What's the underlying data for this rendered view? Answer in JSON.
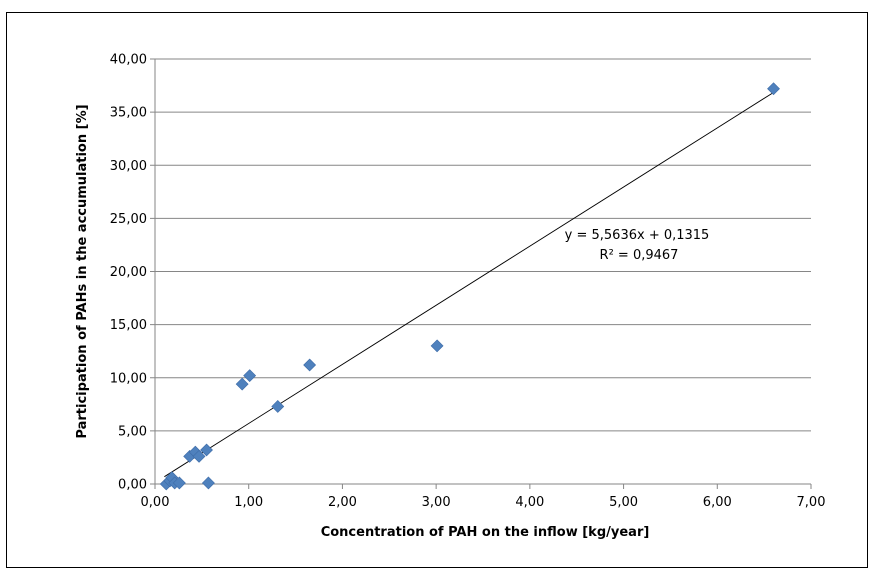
{
  "chart_data": {
    "type": "scatter",
    "title": "",
    "xlabel": "Concentration of PAH on the inflow [kg/year]",
    "ylabel": "Participation of PAHs in the accumulation [%]",
    "xlim": [
      0,
      7
    ],
    "ylim": [
      0,
      40
    ],
    "xticks": [
      "0,00",
      "1,00",
      "2,00",
      "3,00",
      "4,00",
      "5,00",
      "6,00",
      "7,00"
    ],
    "yticks": [
      "0,00",
      "5,00",
      "10,00",
      "15,00",
      "20,00",
      "25,00",
      "30,00",
      "35,00",
      "40,00"
    ],
    "xtick_values": [
      0,
      1,
      2,
      3,
      4,
      5,
      6,
      7
    ],
    "ytick_values": [
      0,
      5,
      10,
      15,
      20,
      25,
      30,
      35,
      40
    ],
    "grid": "horizontal",
    "legend": "none",
    "marker_color": "#4F81BD",
    "series": [
      {
        "marker": "diamond",
        "points": [
          {
            "x": 0.12,
            "y": 0.0
          },
          {
            "x": 0.16,
            "y": 0.3
          },
          {
            "x": 0.18,
            "y": 0.6
          },
          {
            "x": 0.21,
            "y": 0.1
          },
          {
            "x": 0.26,
            "y": 0.1
          },
          {
            "x": 0.37,
            "y": 2.6
          },
          {
            "x": 0.43,
            "y": 3.0
          },
          {
            "x": 0.47,
            "y": 2.6
          },
          {
            "x": 0.55,
            "y": 3.2
          },
          {
            "x": 0.57,
            "y": 0.1
          },
          {
            "x": 0.93,
            "y": 9.4
          },
          {
            "x": 1.01,
            "y": 10.2
          },
          {
            "x": 1.31,
            "y": 7.3
          },
          {
            "x": 1.65,
            "y": 11.2
          },
          {
            "x": 3.01,
            "y": 13.0
          },
          {
            "x": 6.6,
            "y": 37.2
          }
        ]
      }
    ],
    "trendline": {
      "type": "linear",
      "slope": 5.5636,
      "intercept": 0.1315,
      "x_range": [
        0.1,
        6.6
      ],
      "color": "#000000",
      "equation_label": "y = 5,5636x + 0,1315",
      "r2_label": "R² = 0,9467"
    }
  }
}
